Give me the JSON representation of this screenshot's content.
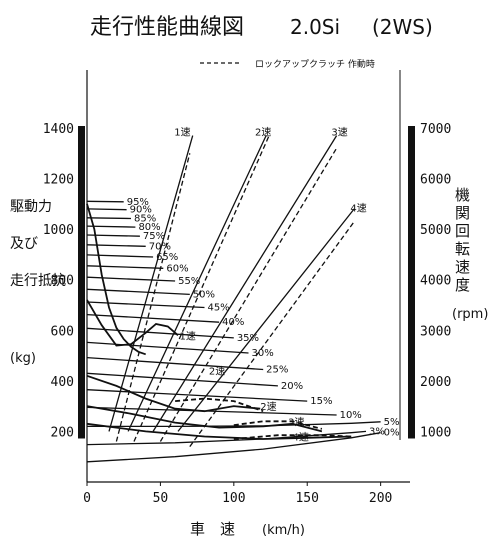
{
  "chart_data": {
    "type": "line",
    "title": "走行性能曲線図",
    "model": "2.0Si",
    "variant": "(2WS)",
    "legend": {
      "dashed_label": "ロックアップクラッチ 作動時",
      "placement": "top-right"
    },
    "xlabel": "車　速",
    "xunit": "(km/h)",
    "y_left_label": [
      "駆動力",
      "及び",
      "走行抵抗"
    ],
    "y_left_unit": "(kg)",
    "y_right_label": [
      "機",
      "関",
      "回",
      "転",
      "速",
      "度"
    ],
    "y_right_unit": "(rpm)",
    "xlim": [
      0,
      220
    ],
    "ylim_left": [
      0,
      1400
    ],
    "ylim_right": [
      0,
      7000
    ],
    "x_ticks": [
      0,
      50,
      100,
      150,
      200
    ],
    "y_left_ticks": [
      200,
      400,
      600,
      800,
      1000,
      1200,
      1400
    ],
    "y_right_ticks": [
      1000,
      2000,
      3000,
      4000,
      5000,
      6000,
      7000
    ],
    "grid": false,
    "gear_labels": {
      "rpm_chart": [
        {
          "label": "1速",
          "x": 65,
          "y": 1390
        },
        {
          "label": "2速",
          "x": 120,
          "y": 1390
        },
        {
          "label": "3速",
          "x": 172,
          "y": 1390
        },
        {
          "label": "4速",
          "x": 185,
          "y": 1090
        }
      ],
      "force_chart": [
        {
          "label": "1速",
          "x": 63,
          "y": 580
        },
        {
          "label": "2速",
          "x": 83,
          "y": 440
        },
        {
          "label": "2速",
          "x": 118,
          "y": 300
        },
        {
          "label": "3速",
          "x": 137,
          "y": 240
        },
        {
          "label": "4速",
          "x": 140,
          "y": 180
        }
      ]
    },
    "gradient_labels": [
      "95%",
      "90%",
      "85%",
      "80%",
      "75%",
      "70%",
      "65%",
      "60%",
      "55%",
      "50%",
      "45%",
      "40%",
      "35%",
      "30%",
      "25%",
      "20%",
      "15%",
      "10%",
      "5%",
      "3%",
      "0%"
    ],
    "series": [
      {
        "group": "engine_rpm",
        "gear": "1速",
        "style": "solid",
        "x": [
          15,
          72
        ],
        "y": [
          200,
          1370
        ]
      },
      {
        "group": "engine_rpm",
        "gear": "1速",
        "style": "dashed",
        "x": [
          20,
          70
        ],
        "y": [
          160,
          1300
        ]
      },
      {
        "group": "engine_rpm",
        "gear": "2速",
        "style": "solid",
        "x": [
          28,
          122
        ],
        "y": [
          200,
          1370
        ]
      },
      {
        "group": "engine_rpm",
        "gear": "2速",
        "style": "dashed",
        "x": [
          32,
          124
        ],
        "y": [
          160,
          1370
        ]
      },
      {
        "group": "engine_rpm",
        "gear": "3速",
        "style": "solid",
        "x": [
          45,
          170
        ],
        "y": [
          200,
          1370
        ]
      },
      {
        "group": "engine_rpm",
        "gear": "3速",
        "style": "dashed",
        "x": [
          50,
          170
        ],
        "y": [
          160,
          1320
        ]
      },
      {
        "group": "engine_rpm",
        "gear": "4速",
        "style": "solid",
        "x": [
          62,
          182
        ],
        "y": [
          200,
          1080
        ]
      },
      {
        "group": "engine_rpm",
        "gear": "4速",
        "style": "dashed",
        "x": [
          70,
          182
        ],
        "y": [
          140,
          1030
        ]
      },
      {
        "group": "driving_force",
        "gear": "1速",
        "style": "solid",
        "x": [
          0,
          5,
          10,
          15,
          20,
          25,
          30,
          35,
          40
        ],
        "y": [
          1100,
          1000,
          820,
          690,
          610,
          565,
          535,
          515,
          505
        ]
      },
      {
        "group": "driving_force",
        "gear": "2速",
        "style": "solid",
        "x": [
          0,
          10,
          20,
          30,
          40,
          47,
          55,
          62
        ],
        "y": [
          720,
          620,
          540,
          545,
          590,
          625,
          615,
          580
        ]
      },
      {
        "group": "driving_force",
        "gear": "2速",
        "style": "solid",
        "x": [
          0,
          20,
          40,
          60,
          80,
          100,
          118
        ],
        "y": [
          420,
          380,
          330,
          290,
          280,
          300,
          290
        ]
      },
      {
        "group": "driving_force",
        "gear": "2速",
        "style": "dashed",
        "x": [
          60,
          80,
          100,
          120
        ],
        "y": [
          320,
          330,
          320,
          280
        ]
      },
      {
        "group": "driving_force",
        "gear": "3速",
        "style": "solid",
        "x": [
          0,
          30,
          60,
          90,
          120,
          140,
          160
        ],
        "y": [
          300,
          270,
          235,
          215,
          220,
          230,
          200
        ]
      },
      {
        "group": "driving_force",
        "gear": "3速",
        "style": "dashed",
        "x": [
          100,
          120,
          140,
          160
        ],
        "y": [
          225,
          240,
          240,
          210
        ]
      },
      {
        "group": "driving_force",
        "gear": "4速",
        "style": "solid",
        "x": [
          0,
          40,
          80,
          120,
          150,
          180
        ],
        "y": [
          230,
          200,
          180,
          170,
          175,
          180
        ]
      },
      {
        "group": "driving_force",
        "gear": "4速",
        "style": "dashed",
        "x": [
          100,
          130,
          160,
          180
        ],
        "y": [
          170,
          185,
          185,
          180
        ]
      },
      {
        "group": "running_resistance",
        "name": "95%",
        "x": [
          0,
          25
        ],
        "y": [
          1110,
          1108
        ]
      },
      {
        "group": "running_resistance",
        "name": "90%",
        "x": [
          0,
          27
        ],
        "y": [
          1080,
          1077
        ]
      },
      {
        "group": "running_resistance",
        "name": "85%",
        "x": [
          0,
          30
        ],
        "y": [
          1045,
          1042
        ]
      },
      {
        "group": "running_resistance",
        "name": "80%",
        "x": [
          0,
          33
        ],
        "y": [
          1012,
          1008
        ]
      },
      {
        "group": "running_resistance",
        "name": "75%",
        "x": [
          0,
          36
        ],
        "y": [
          977,
          972
        ]
      },
      {
        "group": "running_resistance",
        "name": "70%",
        "x": [
          0,
          40
        ],
        "y": [
          938,
          932
        ]
      },
      {
        "group": "running_resistance",
        "name": "65%",
        "x": [
          0,
          45
        ],
        "y": [
          898,
          890
        ]
      },
      {
        "group": "running_resistance",
        "name": "60%",
        "x": [
          0,
          52
        ],
        "y": [
          855,
          845
        ]
      },
      {
        "group": "running_resistance",
        "name": "55%",
        "x": [
          0,
          60
        ],
        "y": [
          810,
          795
        ]
      },
      {
        "group": "running_resistance",
        "name": "50%",
        "x": [
          0,
          70
        ],
        "y": [
          762,
          742
        ]
      },
      {
        "group": "running_resistance",
        "name": "45%",
        "x": [
          0,
          80
        ],
        "y": [
          712,
          690
        ]
      },
      {
        "group": "running_resistance",
        "name": "40%",
        "x": [
          0,
          90
        ],
        "y": [
          662,
          632
        ]
      },
      {
        "group": "running_resistance",
        "name": "35%",
        "x": [
          0,
          100
        ],
        "y": [
          608,
          570
        ]
      },
      {
        "group": "running_resistance",
        "name": "30%",
        "x": [
          0,
          110
        ],
        "y": [
          552,
          510
        ]
      },
      {
        "group": "running_resistance",
        "name": "25%",
        "x": [
          0,
          120
        ],
        "y": [
          492,
          445
        ]
      },
      {
        "group": "running_resistance",
        "name": "20%",
        "x": [
          0,
          130
        ],
        "y": [
          430,
          380
        ]
      },
      {
        "group": "running_resistance",
        "name": "15%",
        "x": [
          0,
          150
        ],
        "y": [
          365,
          320
        ]
      },
      {
        "group": "running_resistance",
        "name": "10%",
        "x": [
          0,
          170
        ],
        "y": [
          295,
          265
        ]
      },
      {
        "group": "running_resistance",
        "name": "5%",
        "x": [
          0,
          60,
          120,
          180,
          200
        ],
        "y": [
          220,
          220,
          222,
          232,
          238
        ]
      },
      {
        "group": "running_resistance",
        "name": "3%",
        "x": [
          0,
          60,
          120,
          180,
          190
        ],
        "y": [
          148,
          155,
          170,
          195,
          200
        ]
      },
      {
        "group": "running_resistance",
        "name": "0%",
        "x": [
          0,
          60,
          120,
          180,
          200
        ],
        "y": [
          80,
          100,
          130,
          175,
          195
        ]
      }
    ]
  }
}
